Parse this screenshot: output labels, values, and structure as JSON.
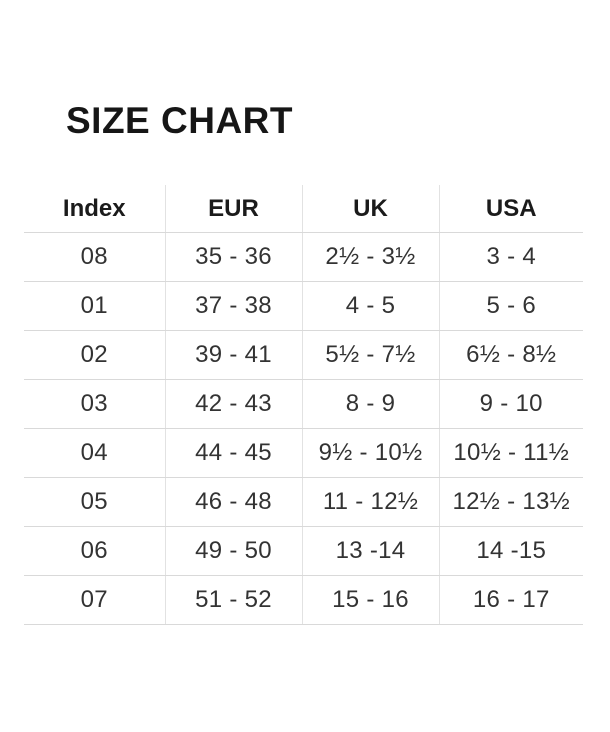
{
  "title": "SIZE CHART",
  "table": {
    "headers": [
      "Index",
      "EUR",
      "UK",
      "USA"
    ],
    "rows": [
      [
        "08",
        "35 - 36",
        "2½ - 3½",
        "3 - 4"
      ],
      [
        "01",
        "37 - 38",
        "4 - 5",
        "5 - 6"
      ],
      [
        "02",
        "39 - 41",
        "5½ - 7½",
        "6½ - 8½"
      ],
      [
        "03",
        "42 - 43",
        "8 - 9",
        "9 - 10"
      ],
      [
        "04",
        "44 - 45",
        "9½ - 10½",
        "10½ - 11½"
      ],
      [
        "05",
        "46 - 48",
        "11 - 12½",
        "12½ - 13½"
      ],
      [
        "06",
        "49 - 50",
        "13 -14",
        "14 -15"
      ],
      [
        "07",
        "51 - 52",
        "15 - 16",
        "16 - 17"
      ]
    ]
  },
  "colors": {
    "background": "#ffffff",
    "title_text": "#161616",
    "header_text": "#1b1b1b",
    "cell_text": "#333333",
    "row_border": "#d9d9d9",
    "column_border": "#e2e2e2"
  }
}
